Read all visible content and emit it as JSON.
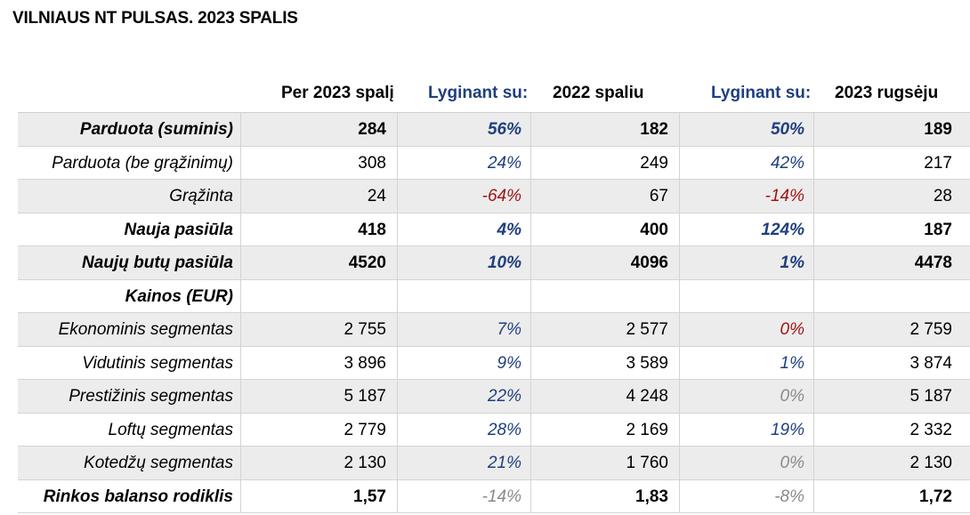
{
  "title": "VILNIAUS NT PULSAS. 2023 SPALIS",
  "headers": {
    "col1": "Per 2023 spalį",
    "col2": "Lyginant su:",
    "col3": "2022 spaliu",
    "col4": "Lyginant su:",
    "col5": "2023 rugsėju"
  },
  "colors": {
    "positive": "#1f3f7f",
    "negative": "#a01414",
    "neutral": "#8a8a8a",
    "shade": "#ececec"
  },
  "rows": [
    {
      "label": "Parduota (suminis)",
      "v1": "284",
      "p1": "56%",
      "v2": "182",
      "p2": "50%",
      "v3": "189"
    },
    {
      "label": "Parduota (be grąžinimų)",
      "v1": "308",
      "p1": "24%",
      "v2": "249",
      "p2": "42%",
      "v3": "217"
    },
    {
      "label": "Grąžinta",
      "v1": "24",
      "p1": "-64%",
      "v2": "67",
      "p2": "-14%",
      "v3": "28"
    },
    {
      "label": "Nauja pasiūla",
      "v1": "418",
      "p1": "4%",
      "v2": "400",
      "p2": "124%",
      "v3": "187"
    },
    {
      "label": "Naujų butų pasiūla",
      "v1": "4520",
      "p1": "10%",
      "v2": "4096",
      "p2": "1%",
      "v3": "4478"
    },
    {
      "label": "Kainos (EUR)",
      "v1": "",
      "p1": "",
      "v2": "",
      "p2": "",
      "v3": ""
    },
    {
      "label": "Ekonominis segmentas",
      "v1": "2 755",
      "p1": "7%",
      "v2": "2 577",
      "p2": "0%",
      "v3": "2 759"
    },
    {
      "label": "Vidutinis segmentas",
      "v1": "3 896",
      "p1": "9%",
      "v2": "3 589",
      "p2": "1%",
      "v3": "3 874"
    },
    {
      "label": "Prestižinis segmentas",
      "v1": "5 187",
      "p1": "22%",
      "v2": "4 248",
      "p2": "0%",
      "v3": "5 187"
    },
    {
      "label": "Loftų segmentas",
      "v1": "2 779",
      "p1": "28%",
      "v2": "2 169",
      "p2": "19%",
      "v3": "2 332"
    },
    {
      "label": "Kotedžų segmentas",
      "v1": "2 130",
      "p1": "21%",
      "v2": "1 760",
      "p2": "0%",
      "v3": "2 130"
    },
    {
      "label": "Rinkos balanso rodiklis",
      "v1": "1,57",
      "p1": "-14%",
      "v2": "1,83",
      "p2": "-8%",
      "v3": "1,72"
    }
  ]
}
